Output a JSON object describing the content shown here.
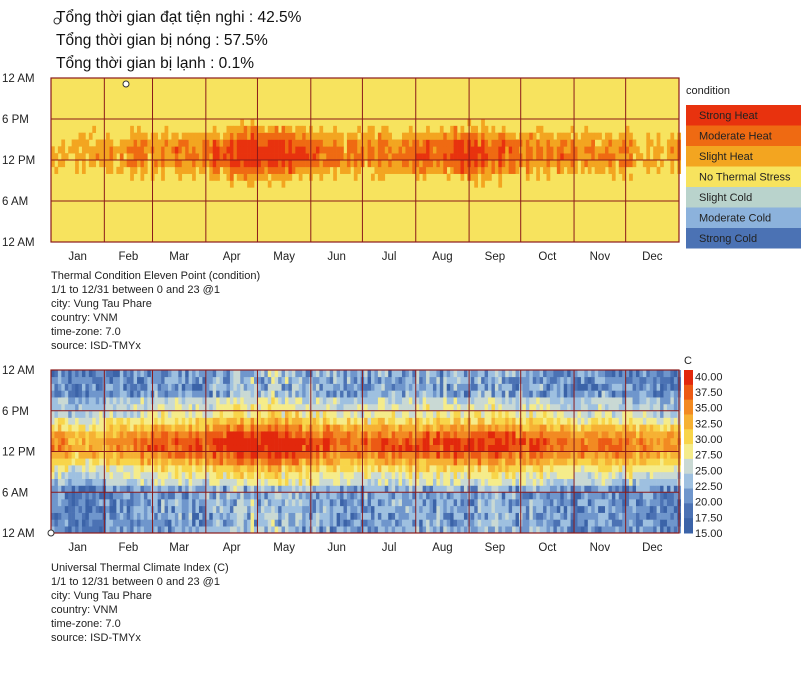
{
  "summary": {
    "comfort": "Tổng thời gian đạt tiện nghi : 42.5%",
    "hot": "Tổng thời gian bị nóng : 57.5%",
    "cold": "Tổng thời gian bị lạnh : 0.1%"
  },
  "colors": {
    "strong_heat": "#e8320e",
    "moderate_heat": "#ef6a12",
    "slight_heat": "#f3a520",
    "no_stress": "#f7e35e",
    "slight_cold": "#b9d3cc",
    "moderate_cold": "#8cb2dc",
    "strong_cold": "#4b72b4",
    "grid": "#8b1a1a"
  },
  "chart_data": [
    {
      "type": "heatmap",
      "y_tick_labels": [
        "12 AM",
        "6 PM",
        "12 PM",
        "6 AM",
        "12 AM"
      ],
      "x_tick_labels": [
        "Jan",
        "Feb",
        "Mar",
        "Apr",
        "May",
        "Jun",
        "Jul",
        "Aug",
        "Sep",
        "Oct",
        "Nov",
        "Dec"
      ],
      "legend_title": "condition",
      "legend_entries": [
        "Strong Heat",
        "Moderate Heat",
        "Slight Heat",
        "No Thermal Stress",
        "Slight Cold",
        "Moderate Cold",
        "Strong Cold"
      ],
      "legend_placement": "right",
      "info_lines": [
        "Thermal Condition Eleven Point (condition)",
        "1/1 to 12/31 between 0 and 23 @1",
        "city: Vung Tau Phare",
        "country: VNM",
        "time-zone: 7.0",
        "source: ISD-TMYx"
      ],
      "x_range": [
        "1/1",
        "12/31"
      ],
      "y_range": [
        0,
        23
      ],
      "grid": true
    },
    {
      "type": "heatmap",
      "y_tick_labels": [
        "12 AM",
        "6 PM",
        "12 PM",
        "6 AM",
        "12 AM"
      ],
      "x_tick_labels": [
        "Jan",
        "Feb",
        "Mar",
        "Apr",
        "May",
        "Jun",
        "Jul",
        "Aug",
        "Sep",
        "Oct",
        "Nov",
        "Dec"
      ],
      "legend_title": "C",
      "colorbar_ticks": [
        "40.00",
        "37.50",
        "35.00",
        "32.50",
        "30.00",
        "27.50",
        "25.00",
        "22.50",
        "20.00",
        "17.50",
        "15.00"
      ],
      "colorbar_range": [
        15,
        41
      ],
      "colorbar_colors": [
        "#3b63a8",
        "#4b72b4",
        "#6f96cc",
        "#9ec0e0",
        "#c9d9d4",
        "#f5ec8a",
        "#f8d54a",
        "#f6b133",
        "#f28a22",
        "#ec5a14",
        "#e2280c"
      ],
      "legend_placement": "right",
      "info_lines": [
        "Universal Thermal Climate Index (C)",
        "1/1 to 12/31 between 0 and 23 @1",
        "city: Vung Tau Phare",
        "country: VNM",
        "time-zone: 7.0",
        "source: ISD-TMYx"
      ],
      "x_range": [
        "1/1",
        "12/31"
      ],
      "y_range": [
        0,
        23
      ],
      "grid": true
    }
  ]
}
